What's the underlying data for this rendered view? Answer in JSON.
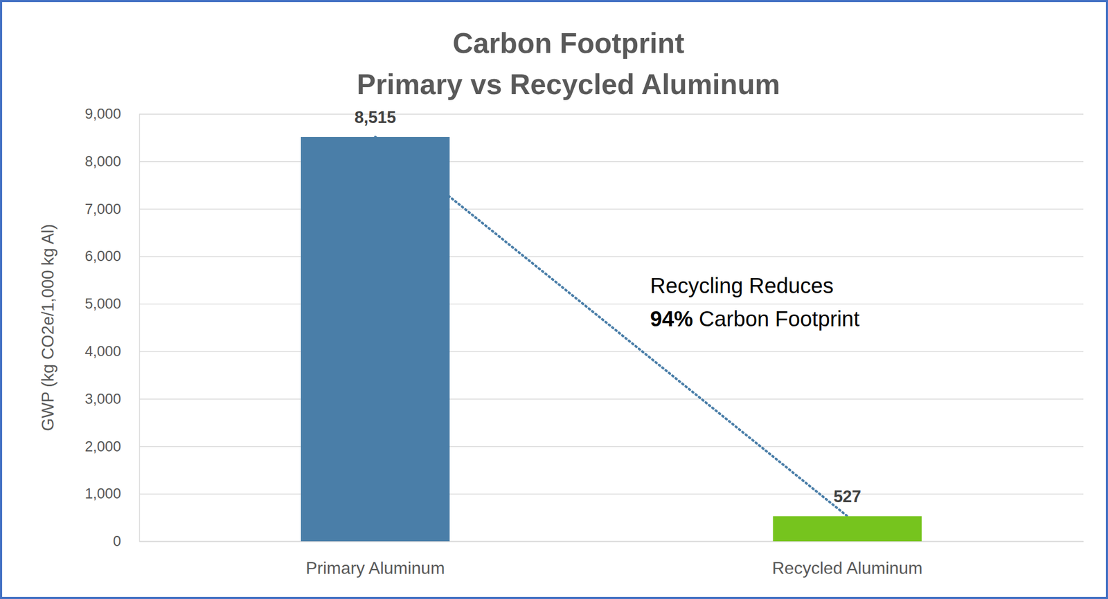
{
  "chart_data": {
    "type": "bar",
    "title": "Carbon Footprint",
    "subtitle": "Primary vs Recycled Aluminum",
    "y_label": "GWP (kg CO2e/1,000 kg Al)",
    "categories": [
      "Primary Aluminum",
      "Recycled Aluminum"
    ],
    "values": [
      8515,
      527
    ],
    "value_labels": [
      "8,515",
      "527"
    ],
    "colors": [
      "#4a7ea8",
      "#76c41e"
    ],
    "ylim": [
      0,
      9000
    ],
    "yticks": [
      0,
      {
        "value": 1000,
        "label": "1,000"
      },
      {
        "value": 2000,
        "label": "2,000"
      },
      {
        "value": 3000,
        "label": "3,000"
      },
      {
        "value": 4000,
        "label": "4,000"
      },
      {
        "value": 5000,
        "label": "5,000"
      },
      {
        "value": 6000,
        "label": "6,000"
      },
      {
        "value": 7000,
        "label": "7,000"
      },
      {
        "value": 8000,
        "label": "8,000"
      },
      {
        "value": 9000,
        "label": "9,000"
      }
    ],
    "grid": true,
    "data_labels": true,
    "annotations": [
      "Recycling Reduces",
      "94%",
      "Carbon Footprint"
    ]
  }
}
